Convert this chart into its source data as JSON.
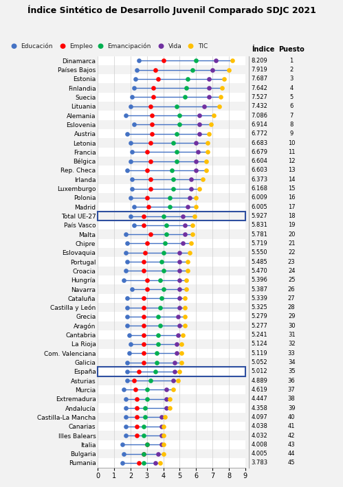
{
  "title": "Índice Sintético de Desarrollo Juvenil Comparado SDJC 2021",
  "categories": [
    "Dinamarca",
    "Países Bajos",
    "Estonia",
    "Finlandia",
    "Suecia",
    "Lituania",
    "Alemania",
    "Eslovenia",
    "Austria",
    "Letonia",
    "Francia",
    "Bélgica",
    "Rep. Checa",
    "Irlanda",
    "Luxemburgo",
    "Polonia",
    "Madrid",
    "Total UE-27",
    "País Vasco",
    "Malta",
    "Chipre",
    "Eslovaquia",
    "Portugal",
    "Croacia",
    "Hungría",
    "Navarra",
    "Cataluña",
    "Castilla y León",
    "Grecia",
    "Aragón",
    "Cantabria",
    "La Rioja",
    "Com. Valenciana",
    "Galicia",
    "España",
    "Asturias",
    "Murcia",
    "Extremadura",
    "Andalucía",
    "Castilla-La Mancha",
    "Canarias",
    "Illes Balears",
    "Italia",
    "Bulgaria",
    "Rumania"
  ],
  "indices": [
    8.209,
    7.919,
    7.687,
    7.642,
    7.527,
    7.432,
    7.086,
    6.914,
    6.772,
    6.683,
    6.679,
    6.604,
    6.603,
    6.373,
    6.168,
    6.009,
    6.005,
    5.927,
    5.831,
    5.781,
    5.719,
    5.55,
    5.485,
    5.47,
    5.396,
    5.387,
    5.339,
    5.325,
    5.279,
    5.277,
    5.241,
    5.124,
    5.119,
    5.052,
    5.012,
    4.889,
    4.619,
    4.447,
    4.358,
    4.097,
    4.038,
    4.032,
    4.008,
    4.005,
    3.783
  ],
  "puestos": [
    1,
    2,
    3,
    4,
    5,
    6,
    7,
    8,
    9,
    10,
    11,
    12,
    13,
    14,
    15,
    16,
    17,
    18,
    19,
    20,
    21,
    22,
    23,
    24,
    25,
    26,
    27,
    28,
    29,
    30,
    31,
    32,
    33,
    34,
    35,
    36,
    37,
    38,
    39,
    40,
    41,
    42,
    43,
    44,
    45
  ],
  "Educacion": [
    2.5,
    2.4,
    2.3,
    2.2,
    2.1,
    2.0,
    1.7,
    2.2,
    1.8,
    2.0,
    2.1,
    2.0,
    1.8,
    2.1,
    2.1,
    2.0,
    2.2,
    2.0,
    2.2,
    1.7,
    1.8,
    1.7,
    1.8,
    1.7,
    1.6,
    2.1,
    1.8,
    1.8,
    1.8,
    1.8,
    1.9,
    2.0,
    1.9,
    1.8,
    1.8,
    1.8,
    1.6,
    1.7,
    1.7,
    1.7,
    1.7,
    1.7,
    1.5,
    1.6,
    1.5
  ],
  "Empleo": [
    4.0,
    3.5,
    3.7,
    3.4,
    3.4,
    3.2,
    3.3,
    3.3,
    3.3,
    3.2,
    3.0,
    3.2,
    3.0,
    3.2,
    3.2,
    3.0,
    3.1,
    2.8,
    2.8,
    3.2,
    3.0,
    2.9,
    2.8,
    2.8,
    3.0,
    3.0,
    2.8,
    2.8,
    2.8,
    2.8,
    2.8,
    2.8,
    2.8,
    2.8,
    2.5,
    2.2,
    2.3,
    2.4,
    2.4,
    2.4,
    2.4,
    2.4,
    3.0,
    2.8,
    2.5
  ],
  "Emancipacion": [
    6.0,
    5.8,
    5.5,
    5.4,
    5.3,
    4.8,
    5.0,
    5.0,
    4.8,
    4.6,
    4.8,
    4.8,
    4.5,
    4.6,
    4.6,
    4.4,
    4.4,
    4.0,
    4.2,
    4.2,
    4.1,
    4.0,
    3.9,
    4.0,
    3.8,
    4.0,
    3.9,
    3.8,
    3.7,
    3.8,
    3.7,
    3.7,
    3.6,
    3.6,
    3.5,
    3.2,
    3.0,
    3.0,
    2.9,
    2.9,
    2.8,
    2.8,
    3.0,
    2.8,
    2.8
  ],
  "Vida": [
    7.2,
    7.0,
    6.8,
    6.8,
    6.8,
    6.5,
    6.2,
    6.2,
    6.2,
    6.0,
    6.1,
    6.0,
    6.0,
    5.7,
    5.7,
    5.6,
    5.5,
    5.2,
    5.3,
    5.3,
    5.2,
    5.0,
    5.0,
    5.0,
    5.0,
    5.0,
    5.0,
    5.0,
    4.9,
    5.0,
    4.9,
    4.8,
    4.8,
    4.7,
    4.7,
    4.6,
    4.2,
    4.2,
    4.2,
    3.9,
    3.9,
    3.9,
    3.9,
    3.7,
    3.5
  ],
  "TIC": [
    8.2,
    8.0,
    7.7,
    7.6,
    7.5,
    7.4,
    7.1,
    6.9,
    6.8,
    6.7,
    6.7,
    6.6,
    6.6,
    6.4,
    6.2,
    6.0,
    6.0,
    5.9,
    5.8,
    5.8,
    5.7,
    5.6,
    5.5,
    5.5,
    5.4,
    5.4,
    5.3,
    5.3,
    5.3,
    5.3,
    5.2,
    5.1,
    5.1,
    5.1,
    5.0,
    4.9,
    4.6,
    4.4,
    4.4,
    4.1,
    4.0,
    4.0,
    4.0,
    4.0,
    3.8
  ],
  "color_Educacion": "#4472C4",
  "color_Empleo": "#FF0000",
  "color_Emancipacion": "#00B050",
  "color_Vida": "#7030A0",
  "color_TIC": "#FFC000",
  "line_color": "#4472C4",
  "highlight_rows": [
    17,
    34
  ],
  "highlight_color": "#2E4FA0",
  "bg_color": "#F2F2F2",
  "row_alt_color": "#FFFFFF",
  "xlim": [
    0,
    9
  ],
  "xticks": [
    0,
    1,
    2,
    3,
    4,
    5,
    6,
    7,
    8,
    9
  ]
}
